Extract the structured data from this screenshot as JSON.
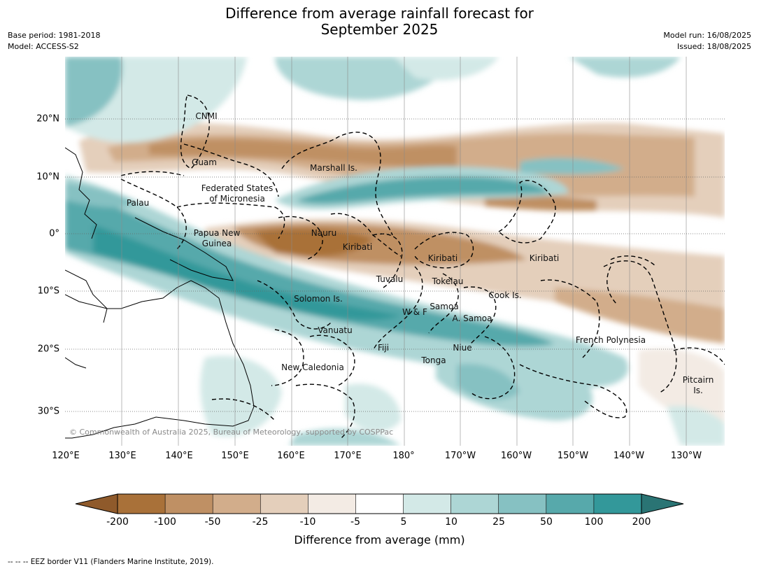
{
  "title_line1": "Difference from average rainfall forecast for",
  "title_line2": "September 2025",
  "meta_left": [
    "Base period: 1981-2018",
    "Model: ACCESS-S2"
  ],
  "meta_right": [
    "Model run: 16/08/2025",
    "Issued: 18/08/2025"
  ],
  "lon_labels": [
    "120°E",
    "130°E",
    "140°E",
    "150°E",
    "160°E",
    "170°E",
    "180°",
    "170°W",
    "160°W",
    "150°W",
    "140°W",
    "130°W"
  ],
  "lat_labels": [
    "20°N",
    "10°N",
    "0°",
    "10°S",
    "20°S",
    "30°S"
  ],
  "regions": [
    "CNMI",
    "Guam",
    "Marshall Is.",
    "Federated States",
    "of Micronesia",
    "Palau",
    "Papua New",
    "Guinea",
    "Nauru",
    "Kiribati",
    "Kiribati",
    "Kiribati",
    "Tuvalu",
    "Tokelau",
    "Solomon Is.",
    "Samoa",
    "W & F",
    "A. Samoa",
    "Cook Is.",
    "Vanuatu",
    "Fiji",
    "Niue",
    "French Polynesia",
    "Tonga",
    "New Caledonia",
    "Pitcairn",
    "Is."
  ],
  "copyright": "© Commonwealth of Australia 2025, Bureau of Meteorology, supported by COSPPac",
  "colorbar": {
    "labels": [
      "-200",
      "-100",
      "-50",
      "-25",
      "-10",
      "-5",
      "5",
      "10",
      "25",
      "50",
      "100",
      "200"
    ],
    "colors": [
      "#8f5a2b",
      "#a97139",
      "#bf9064",
      "#d2ad8b",
      "#e4cfbb",
      "#f3ebe4",
      "#ffffff",
      "#d3e9e7",
      "#add6d5",
      "#86c1c2",
      "#57a9ab",
      "#33989a",
      "#2a7474"
    ],
    "title": "Difference from average (mm)"
  },
  "footnote": "--  --  -- EEZ border V11 (Flanders Marine Institute, 2019)."
}
